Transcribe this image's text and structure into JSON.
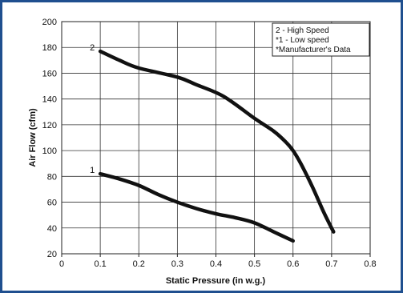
{
  "chart_data": {
    "type": "line",
    "xlabel": "Static Pressure (in w.g.)",
    "ylabel": "Air Flow (cfm)",
    "xlim": [
      0,
      0.8
    ],
    "ylim": [
      20,
      200
    ],
    "x_ticks": [
      "0",
      "0.1",
      "0.2",
      "0.3",
      "0.4",
      "0.5",
      "0.6",
      "0.7",
      "0.8"
    ],
    "y_ticks": [
      "20",
      "40",
      "60",
      "80",
      "100",
      "120",
      "140",
      "160",
      "180",
      "200"
    ],
    "grid": true,
    "legend_position": "top-right",
    "legend_lines": [
      "2 - High Speed",
      "*1 - Low speed",
      "*Manufacturer's Data"
    ],
    "series": [
      {
        "name": "2",
        "x": [
          0.1,
          0.15,
          0.2,
          0.3,
          0.35,
          0.42,
          0.5,
          0.55,
          0.58,
          0.6,
          0.62,
          0.65,
          0.68,
          0.705
        ],
        "y": [
          177,
          170,
          164,
          157,
          151,
          142,
          125,
          115,
          107,
          100,
          90,
          72,
          52,
          37
        ]
      },
      {
        "name": "1",
        "x": [
          0.1,
          0.15,
          0.2,
          0.25,
          0.3,
          0.35,
          0.4,
          0.45,
          0.5,
          0.55,
          0.6
        ],
        "y": [
          82,
          78,
          73,
          66,
          60,
          55,
          51,
          48,
          44,
          37,
          30
        ]
      }
    ]
  }
}
